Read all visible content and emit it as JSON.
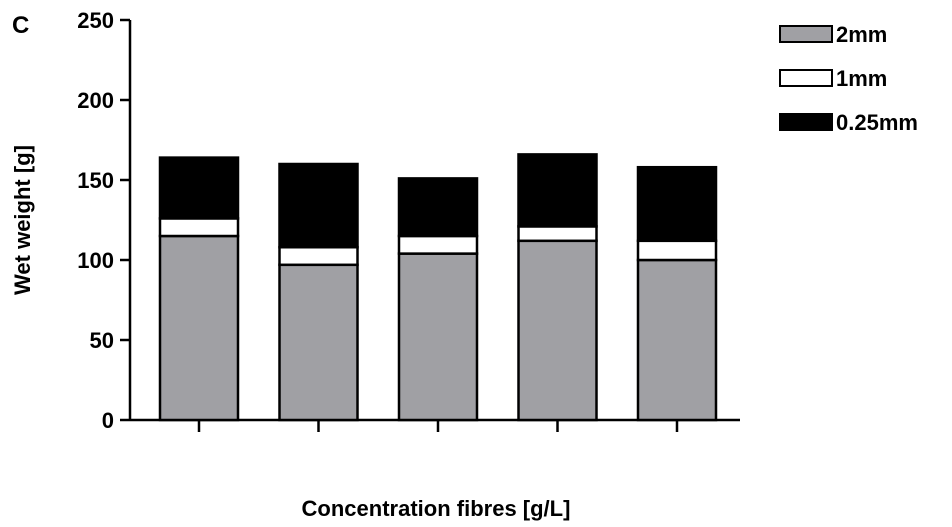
{
  "panel_label": "C",
  "chart_data": {
    "type": "bar",
    "stacked": true,
    "title": "",
    "xlabel": "Concentration fibres [g/L]",
    "ylabel": "Wet weight [g]",
    "ylim": [
      0,
      250
    ],
    "yticks": [
      "0",
      "50",
      "100",
      "150",
      "200",
      "250"
    ],
    "categories": [
      "",
      "",
      "",
      "",
      ""
    ],
    "series": [
      {
        "name": "2mm",
        "color": "#a0a0a4",
        "values": [
          115,
          97,
          104,
          112,
          100
        ]
      },
      {
        "name": "1mm",
        "color": "#ffffff",
        "values": [
          11,
          11,
          11,
          9,
          12
        ]
      },
      {
        "name": "0.25mm",
        "color": "#000000",
        "values": [
          38,
          52,
          36,
          45,
          46
        ]
      }
    ],
    "legend_position": "top-right",
    "grid": false
  }
}
